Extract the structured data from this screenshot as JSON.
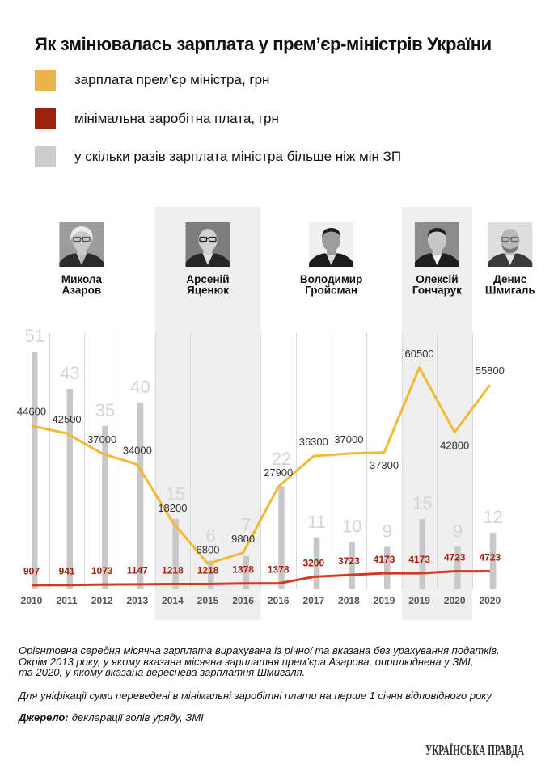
{
  "chart_data": {
    "type": "line",
    "title": "Як змінювалась зарплата у прем’єр-міністрів України",
    "categories": [
      "2010",
      "2011",
      "2012",
      "2013",
      "2014",
      "2015",
      "2016",
      "2016",
      "2017",
      "2018",
      "2019",
      "2019",
      "2020",
      "2020"
    ],
    "series": [
      {
        "name": "зарплата прем’єр міністра, грн",
        "type": "line",
        "values": [
          44600,
          42500,
          37000,
          34000,
          18200,
          6800,
          9800,
          27900,
          36300,
          37000,
          37300,
          60500,
          42800,
          55800
        ],
        "color": "#F2B935",
        "legend_color": "#E8B54E",
        "label_color": "#333333"
      },
      {
        "name": "мінімальна заробітна плата, грн",
        "type": "line",
        "values": [
          907,
          941,
          1073,
          1147,
          1218,
          1218,
          1378,
          1378,
          3200,
          3723,
          4173,
          4173,
          4723,
          4723
        ],
        "color": "#D43A22",
        "legend_color": "#9C2210",
        "label_color": "#A3200C"
      },
      {
        "name": "у скільки разів зарплата міністра більше ніж мін ЗП",
        "type": "bar",
        "values": [
          51,
          43,
          35,
          40,
          15,
          6,
          7,
          22,
          11,
          10,
          9,
          15,
          9,
          12
        ],
        "color": "#C8C8C8",
        "legend_color": "#CCCCCA",
        "label_color": "#D4D4D4"
      }
    ],
    "xlabel": "",
    "ylabel": "",
    "ylim": [
      0,
      70000
    ],
    "bar_ylim": [
      0,
      55
    ],
    "grid": "vertical",
    "legend_position": "top-left",
    "data_labels": true
  },
  "premiers": [
    {
      "name_lines": [
        "Микола",
        "Азаров"
      ],
      "first_col": 0,
      "last_col": 3
    },
    {
      "name_lines": [
        "Арсеній",
        "Яценюк"
      ],
      "first_col": 4,
      "last_col": 6
    },
    {
      "name_lines": [
        "Володимир",
        "Гройсман"
      ],
      "first_col": 7,
      "last_col": 10
    },
    {
      "name_lines": [
        "Олексій",
        "Гончарук"
      ],
      "first_col": 11,
      "last_col": 12
    },
    {
      "name_lines": [
        "Денис",
        "Шмигаль"
      ],
      "first_col": 13,
      "last_col": 13
    }
  ],
  "footer": {
    "note_lines": [
      "Орієнтовна середня місячна зарплата вирахувана із річної та вказана без урахування податків.",
      "Окрім 2013 року, у якому вказана місячна зарплатня прем’єра Азарова, оприлюднена у ЗМІ,",
      "та 2020, у якому вказана вереснева зарплатня Шмигаля."
    ],
    "unification_note": "Для уніфікації суми переведені в мінімальні заробітні плати на перше 1 січня відповідного року",
    "source_label": "Джерело:",
    "source_text": "декларації голів уряду, ЗМІ"
  },
  "brand": {
    "logo_text": "УКРАЇНСЬКА ПРАВДА"
  }
}
